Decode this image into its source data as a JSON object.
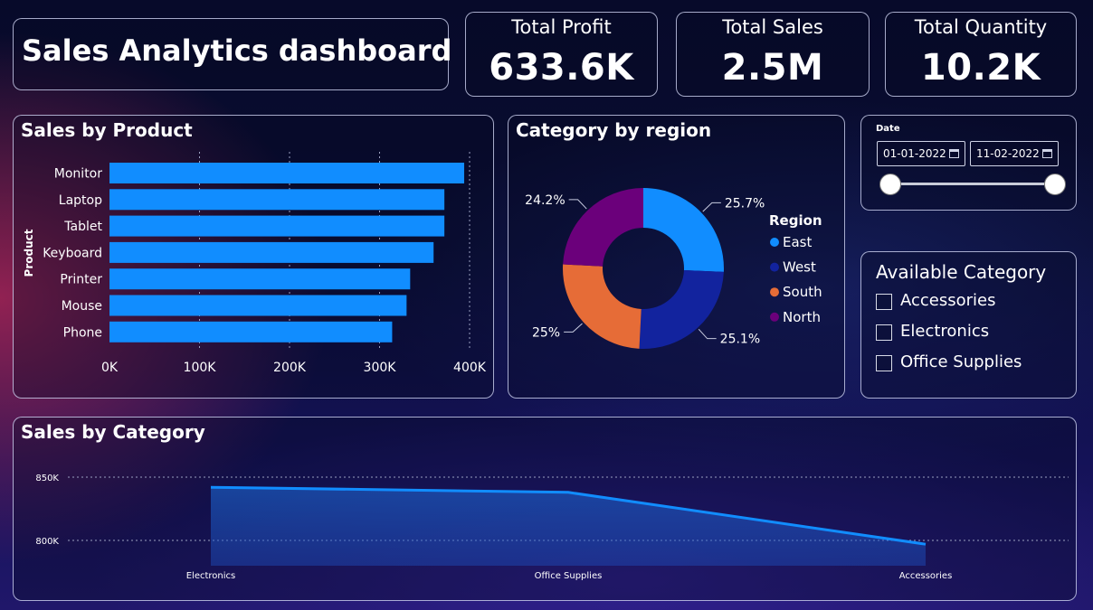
{
  "dashboard": {
    "title": "Sales Analytics dashboard"
  },
  "kpis": [
    {
      "title": "Total Profit",
      "value": "633.6K"
    },
    {
      "title": "Total Sales",
      "value": "2.5M"
    },
    {
      "title": "Total Quantity",
      "value": "10.2K"
    }
  ],
  "date_filter": {
    "label": "Date",
    "start": "01-01-2022",
    "end": "11-02-2022",
    "range_fraction": [
      0,
      1
    ]
  },
  "category_filter": {
    "title": "Available Category",
    "options": [
      {
        "label": "Accessories",
        "checked": false
      },
      {
        "label": "Electronics",
        "checked": false
      },
      {
        "label": "Office Supplies",
        "checked": false
      }
    ]
  },
  "chart_data": [
    {
      "type": "bar",
      "orientation": "horizontal",
      "title": "Sales by Product",
      "ylabel": "Product",
      "xlabel": "",
      "categories": [
        "Monitor",
        "Laptop",
        "Tablet",
        "Keyboard",
        "Printer",
        "Mouse",
        "Phone"
      ],
      "values": [
        394000,
        372000,
        372000,
        360000,
        334000,
        330000,
        314000
      ],
      "xlim": [
        0,
        400000
      ],
      "ticks": [
        0,
        100000,
        200000,
        300000,
        400000
      ],
      "tick_labels": [
        "0K",
        "100K",
        "200K",
        "300K",
        "400K"
      ],
      "color": "#118dff",
      "grid": "vertical dotted"
    },
    {
      "type": "pie",
      "variant": "donut",
      "title": "Category by region",
      "legend_title": "Region",
      "legend_position": "right",
      "slices": [
        {
          "name": "East",
          "value": 25.7,
          "label": "25.7%",
          "color": "#118dff"
        },
        {
          "name": "West",
          "value": 25.1,
          "label": "25.1%",
          "color": "#12239e"
        },
        {
          "name": "South",
          "value": 25.0,
          "label": "25%",
          "color": "#e66c37"
        },
        {
          "name": "North",
          "value": 24.2,
          "label": "24.2%",
          "color": "#6b007b"
        }
      ]
    },
    {
      "type": "area",
      "title": "Sales by Category",
      "xlabel": "",
      "ylabel": "",
      "categories": [
        "Electronics",
        "Office Supplies",
        "Accessories"
      ],
      "values": [
        842000,
        838000,
        797000
      ],
      "ylim": [
        780000,
        855000
      ],
      "ticks": [
        800000,
        850000
      ],
      "tick_labels": [
        "800K",
        "850K"
      ],
      "color": "#118dff",
      "grid": "horizontal dotted"
    }
  ]
}
